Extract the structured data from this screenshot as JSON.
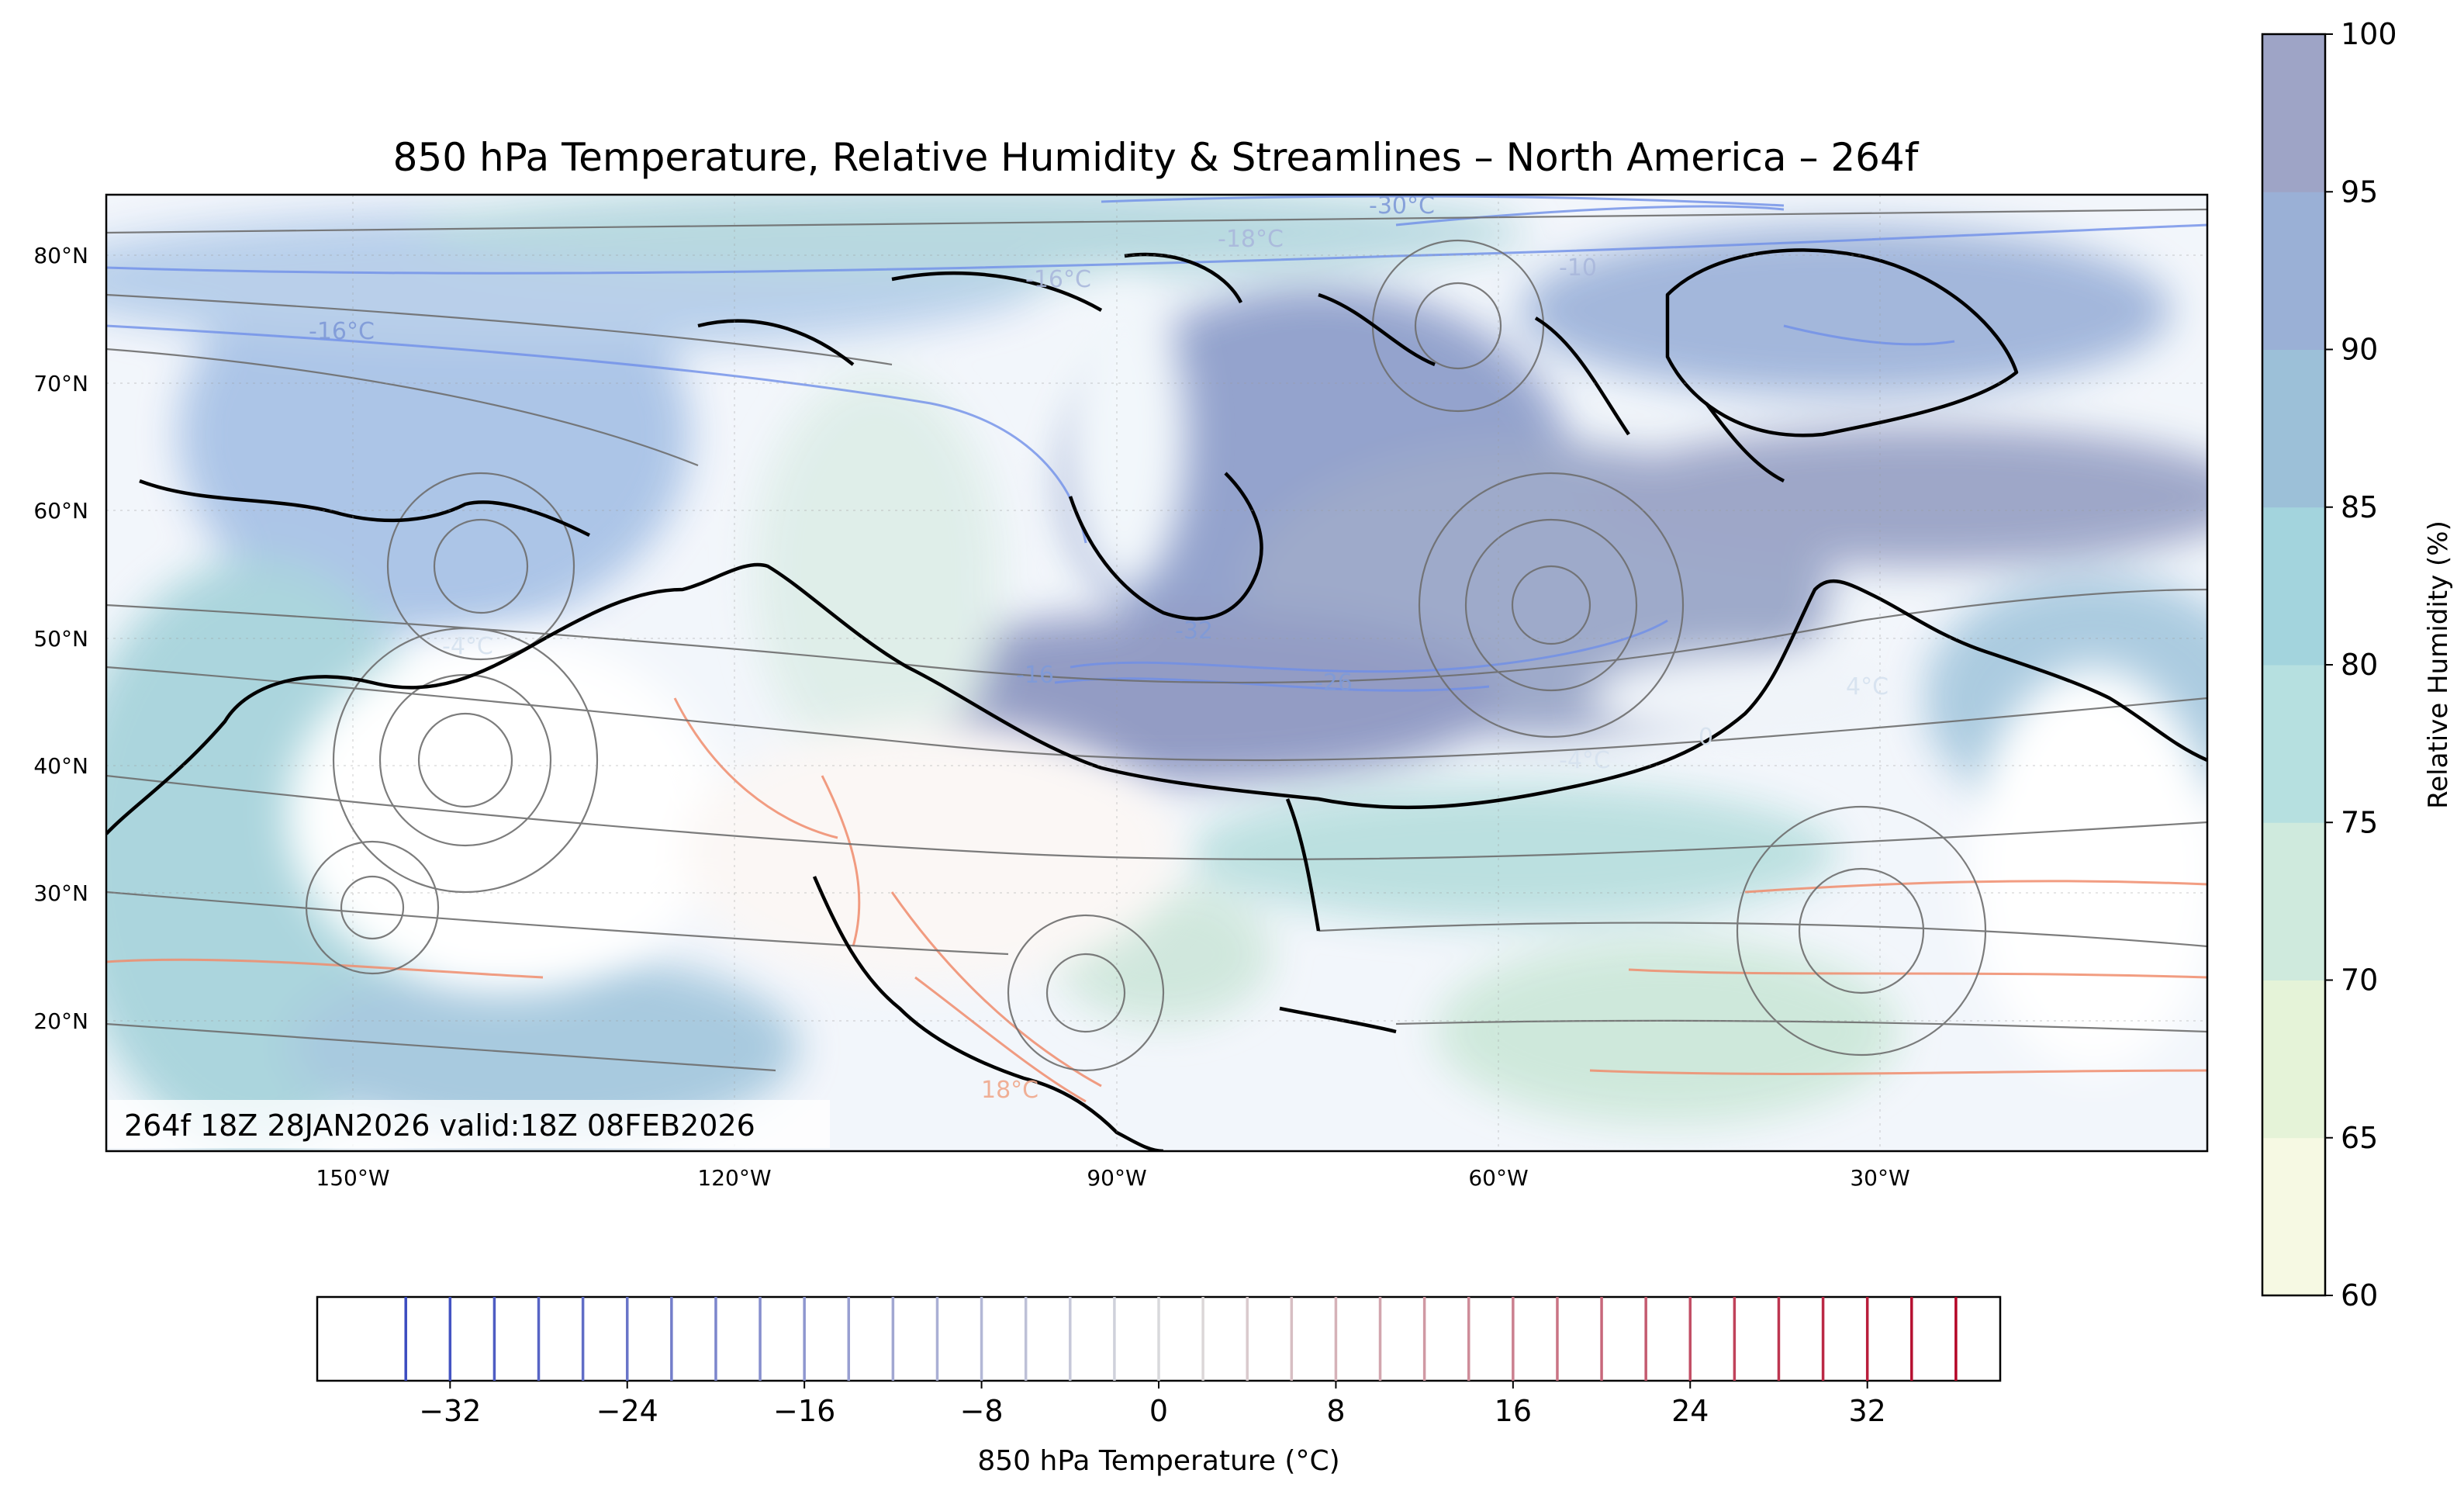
{
  "title": "850 hPa Temperature, Relative Humidity & Streamlines – North America – 264f",
  "valid_label": "264f 18Z 28JAN2026 valid:18Z 08FEB2026",
  "map": {
    "lon_labels": [
      "150°W",
      "120°W",
      "90°W",
      "60°W",
      "30°W"
    ],
    "lat_labels": [
      "80°N",
      "70°N",
      "60°N",
      "50°N",
      "40°N",
      "30°N",
      "20°N"
    ],
    "contour_labels": [
      "-30°C",
      "-16°C",
      "-16°C",
      "-10",
      "-32",
      "-26",
      "-16",
      "-4°C",
      "-4°C",
      "4°C",
      "-18°C",
      "18°C",
      "0"
    ],
    "colors": {
      "coast": "#000000",
      "streamline": "#6e6e6e",
      "cold_contour": "#6f8fe8",
      "warm_contour": "#f08c6c",
      "ocean_base": "#f4f8ff"
    }
  },
  "rh_colorbar": {
    "label": "Relative Humidity (%)",
    "ticks": [
      "60",
      "65",
      "70",
      "75",
      "80",
      "85",
      "90",
      "95",
      "100"
    ],
    "colors": [
      "#f6f9e3",
      "#e5f3d8",
      "#cfeadd",
      "#b6e0e0",
      "#a3d4dd",
      "#9cc0d8",
      "#9ab0d6",
      "#9ea4c6"
    ]
  },
  "temp_colorbar": {
    "label": "850 hPa Temperature (°C)",
    "ticks": [
      "−32",
      "−24",
      "−16",
      "−8",
      "0",
      "8",
      "16",
      "24",
      "32"
    ],
    "levels": [
      -34,
      -32,
      -30,
      -28,
      -26,
      -24,
      -22,
      -20,
      -18,
      -16,
      -14,
      -12,
      -10,
      -8,
      -6,
      -4,
      -2,
      0,
      2,
      4,
      6,
      8,
      10,
      12,
      14,
      16,
      18,
      20,
      22,
      24,
      26,
      28,
      30,
      32,
      34,
      36
    ],
    "cmap": "coolwarm"
  }
}
